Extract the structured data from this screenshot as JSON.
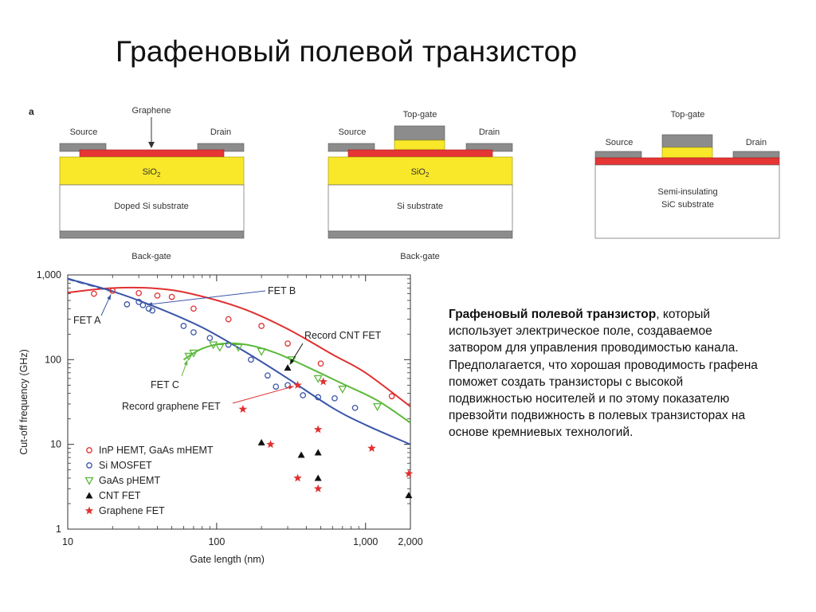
{
  "title": "Графеновый полевой транзистор",
  "figure_panel_label": "a",
  "diagrams": [
    {
      "graphene_label": "Graphene",
      "source_label": "Source",
      "drain_label": "Drain",
      "dielectric_label": "SiO",
      "dielectric_sub": "2",
      "substrate_label": "Doped Si substrate",
      "gate_label": "Back-gate"
    },
    {
      "topgate_label": "Top-gate",
      "source_label": "Source",
      "drain_label": "Drain",
      "dielectric_label": "SiO",
      "dielectric_sub": "2",
      "substrate_label": "Si substrate",
      "gate_label": "Back-gate"
    },
    {
      "topgate_label": "Top-gate",
      "source_label": "Source",
      "drain_label": "Drain",
      "substrate_line1": "Semi-insulating",
      "substrate_line2": "SiC substrate"
    }
  ],
  "description": {
    "bold": "Графеновый полевой транзистор",
    "rest": ", который использует электрическое поле, создаваемое затвором для управления проводимостью канала. Предполагается, что  хорошая проводимость графена поможет создать транзисторы с высокой подвижностью носителей и по этому показателю превзойти подвижность в полевых транзисторах на основе кремниевых технологий."
  },
  "colors": {
    "inp": "#e03030",
    "si": "#3a55a8",
    "gaas": "#5cb83c",
    "cnt": "#111111",
    "graphene": "#e03030",
    "metal": "#8c8c8c",
    "sio2": "#f8e829",
    "channel": "#e53535"
  },
  "chart_data": {
    "type": "scatter",
    "xlabel": "Gate length (nm)",
    "ylabel": "Cut-off frequency (GHz)",
    "x_scale": "log",
    "y_scale": "log",
    "xlim": [
      10,
      2000
    ],
    "ylim": [
      1,
      1000
    ],
    "x_ticks": [
      {
        "value": 10,
        "label": "10"
      },
      {
        "value": 100,
        "label": "100"
      },
      {
        "value": 1000,
        "label": "1,000"
      },
      {
        "value": 2000,
        "label": "2,000"
      }
    ],
    "y_ticks": [
      {
        "value": 1,
        "label": "1"
      },
      {
        "value": 10,
        "label": "10"
      },
      {
        "value": 100,
        "label": "100"
      },
      {
        "value": 1000,
        "label": "1,000"
      }
    ],
    "series": [
      {
        "name": "InP HEMT, GaAs mHEMT",
        "marker": "circle",
        "color_key": "inp",
        "points": [
          [
            15,
            600
          ],
          [
            20,
            650
          ],
          [
            30,
            610
          ],
          [
            40,
            570
          ],
          [
            50,
            550
          ],
          [
            70,
            400
          ],
          [
            120,
            300
          ],
          [
            200,
            250
          ],
          [
            300,
            155
          ],
          [
            500,
            90
          ],
          [
            1500,
            37
          ]
        ],
        "trend": [
          [
            10,
            620
          ],
          [
            20,
            700
          ],
          [
            40,
            690
          ],
          [
            70,
            590
          ],
          [
            150,
            400
          ],
          [
            300,
            230
          ],
          [
            600,
            115
          ],
          [
            1000,
            70
          ],
          [
            2000,
            28
          ]
        ]
      },
      {
        "name": "Si MOSFET",
        "marker": "circle",
        "color_key": "si",
        "points": [
          [
            25,
            450
          ],
          [
            30,
            480
          ],
          [
            32,
            440
          ],
          [
            35,
            400
          ],
          [
            37,
            380
          ],
          [
            60,
            250
          ],
          [
            70,
            210
          ],
          [
            90,
            180
          ],
          [
            120,
            150
          ],
          [
            170,
            100
          ],
          [
            220,
            65
          ],
          [
            250,
            48
          ],
          [
            300,
            50
          ],
          [
            380,
            38
          ],
          [
            480,
            36
          ],
          [
            620,
            35
          ],
          [
            850,
            27
          ]
        ],
        "trend": [
          [
            10,
            900
          ],
          [
            20,
            640
          ],
          [
            40,
            410
          ],
          [
            80,
            240
          ],
          [
            160,
            120
          ],
          [
            300,
            60
          ],
          [
            600,
            27
          ],
          [
            1000,
            17
          ],
          [
            2000,
            10
          ]
        ]
      },
      {
        "name": "GaAs pHEMT",
        "marker": "triangle-down",
        "color_key": "gaas",
        "points": [
          [
            65,
            110
          ],
          [
            70,
            120
          ],
          [
            95,
            150
          ],
          [
            105,
            140
          ],
          [
            140,
            140
          ],
          [
            200,
            125
          ],
          [
            320,
            100
          ],
          [
            480,
            60
          ],
          [
            700,
            45
          ],
          [
            1200,
            28
          ]
        ],
        "trend": [
          [
            60,
            100
          ],
          [
            80,
            135
          ],
          [
            110,
            155
          ],
          [
            160,
            150
          ],
          [
            250,
            120
          ],
          [
            400,
            83
          ],
          [
            700,
            52
          ],
          [
            1200,
            33
          ],
          [
            2000,
            18
          ]
        ]
      },
      {
        "name": "CNT FET",
        "marker": "triangle-up",
        "color_key": "cnt",
        "points": [
          [
            200,
            10.5
          ],
          [
            300,
            80
          ],
          [
            370,
            7.5
          ],
          [
            480,
            8
          ],
          [
            480,
            4
          ],
          [
            1950,
            2.5
          ]
        ]
      },
      {
        "name": "Graphene FET",
        "marker": "star",
        "color_key": "graphene",
        "points": [
          [
            150,
            26
          ],
          [
            230,
            10
          ],
          [
            350,
            50
          ],
          [
            350,
            4
          ],
          [
            480,
            15
          ],
          [
            480,
            3
          ],
          [
            520,
            55
          ],
          [
            1100,
            9
          ],
          [
            2000,
            4.5
          ]
        ]
      }
    ],
    "annotations": [
      {
        "label": "FET A",
        "point": [
          20,
          650
        ]
      },
      {
        "label": "FET B",
        "point": [
          32,
          440
        ]
      },
      {
        "label": "FET C",
        "point": [
          65,
          110
        ]
      },
      {
        "label": "Record CNT FET",
        "point": [
          300,
          80
        ]
      },
      {
        "label": "Record graphene FET",
        "point": [
          350,
          50
        ]
      }
    ],
    "legend_position": "bottom-left"
  }
}
